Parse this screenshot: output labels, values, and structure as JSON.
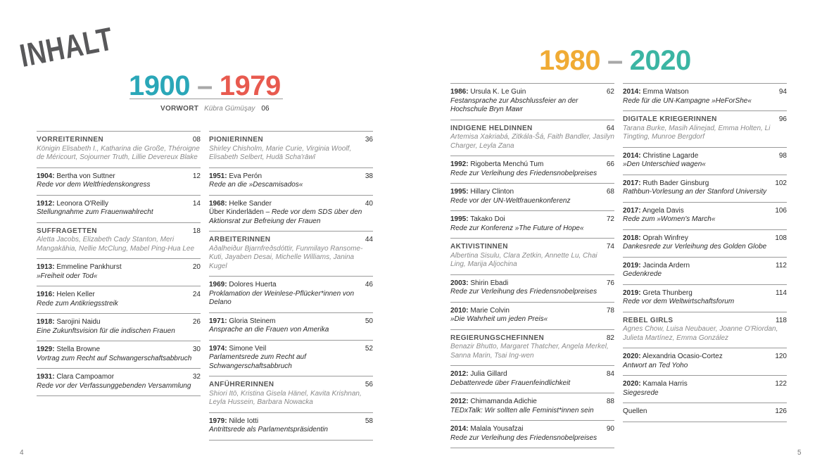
{
  "title": "INHALT",
  "left_page": {
    "range_start": "1900",
    "range_dash": "–",
    "range_end": "1979",
    "vorwort": {
      "label": "VORWORT",
      "author": "Kübra Gümüşay",
      "page": "06"
    },
    "columns": [
      [
        {
          "group": "VORREITERINNEN",
          "members": "Königin Elisabeth I., Katharina die Große, Théroigne de Méricourt, Sojourner Truth, Lillie Devereux Blake",
          "page": "08"
        },
        {
          "year": "1904:",
          "name": "Bertha von Suttner",
          "subtitle": "Rede vor dem Weltfriedenskongress",
          "page": "12"
        },
        {
          "year": "1912:",
          "name": "Leonora O'Reilly",
          "subtitle": "Stellungnahme zum Frauenwahlrecht",
          "page": "14"
        },
        {
          "group": "SUFFRAGETTEN",
          "members": "Aletta Jacobs, Elizabeth Cady Stanton, Meri Mangakāhia, Nellie McClung, Mabel Ping-Hua Lee",
          "page": "18"
        },
        {
          "year": "1913:",
          "name": "Emmeline Pankhurst",
          "subtitle": "»Freiheit oder Tod«",
          "page": "20"
        },
        {
          "year": "1916:",
          "name": "Helen Keller",
          "subtitle": "Rede zum Antikriegsstreik",
          "page": "24"
        },
        {
          "year": "1918:",
          "name": "Sarojini Naidu",
          "subtitle": "Eine Zukunftsvision für die indischen Frauen",
          "page": "26"
        },
        {
          "year": "1929:",
          "name": "Stella Browne",
          "subtitle": "Vortrag zum Recht auf Schwangerschaftsabbruch",
          "page": "30"
        },
        {
          "year": "1931:",
          "name": "Clara Campoamor",
          "subtitle": "Rede vor der Verfassunggebenden Versammlung",
          "page": "32"
        }
      ],
      [
        {
          "group": "PIONIERINNEN",
          "members": "Shirley Chisholm, Marie Curie, Virginia Woolf, Elisabeth Selbert, Hudā Scha'rāwī",
          "page": "36"
        },
        {
          "year": "1951:",
          "name": "Eva Perón",
          "subtitle": "Rede an die »Descamisados«",
          "page": "38"
        },
        {
          "year": "1968:",
          "name": "Helke Sander",
          "subtitle_plain": "Über Kinderläden – ",
          "subtitle": "Rede vor dem SDS über den Aktionsrat zur Befreiung der Frauen",
          "page": "40"
        },
        {
          "group": "ARBEITERINNEN",
          "members": "Aðalheiður Bjarnfreðsdóttir, Funmilayo Ransome-Kuti, Jayaben Desai, Michelle Williams, Janina Kugel",
          "page": "44"
        },
        {
          "year": "1969:",
          "name": "Dolores Huerta",
          "subtitle": "Proklamation der Weinlese-Pflücker*innen von Delano",
          "page": "46"
        },
        {
          "year": "1971:",
          "name": "Gloria Steinem",
          "subtitle": "Ansprache an die Frauen von Amerika",
          "page": "50"
        },
        {
          "year": "1974:",
          "name": "Simone Veil",
          "subtitle": "Parlamentsrede zum Recht auf Schwangerschaftsabbruch",
          "page": "52"
        },
        {
          "group": "ANFÜHRERINNEN",
          "members": "Shiori Itō, Kristina Gisela Hänel, Kavita Krishnan, Leyla Hussein, Barbara Nowacka",
          "page": "56"
        },
        {
          "year": "1979:",
          "name": "Nilde Iotti",
          "subtitle": "Antrittsrede als Parlamentspräsidentin",
          "page": "58"
        }
      ]
    ],
    "page_number": "4"
  },
  "right_page": {
    "range_start": "1980",
    "range_dash": "–",
    "range_end": "2020",
    "columns": [
      [
        {
          "year": "1986:",
          "name": "Ursula K. Le Guin",
          "subtitle": "Festansprache zur Abschlussfeier an der Hochschule Bryn Mawr",
          "page": "62"
        },
        {
          "group": "INDIGENE HELDINNEN",
          "members": "Artemisa Xakriabá, Zitkála-Šá, Faith Bandler, Jasilyn Charger, Leyla Zana",
          "page": "64"
        },
        {
          "year": "1992:",
          "name": "Rigoberta Menchú Tum",
          "subtitle": "Rede zur Verleihung des Friedensnobelpreises",
          "page": "66"
        },
        {
          "year": "1995:",
          "name": "Hillary Clinton",
          "subtitle": "Rede vor der UN-Weltfrauenkonferenz",
          "page": "68"
        },
        {
          "year": "1995:",
          "name": "Takako Doi",
          "subtitle": "Rede zur Konferenz »The Future of Hope«",
          "page": "72"
        },
        {
          "group": "AKTIVISTINNEN",
          "members": "Albertina Sisulu, Clara Zetkin, Annette Lu, Chai Ling, Marija Aljochina",
          "page": "74"
        },
        {
          "year": "2003:",
          "name": "Shirin Ebadi",
          "subtitle": "Rede zur Verleihung des Friedensnobelpreises",
          "page": "76"
        },
        {
          "year": "2010:",
          "name": "Marie Colvin",
          "subtitle": "»Die Wahrheit um jeden Preis«",
          "page": "78"
        },
        {
          "group": "REGIERUNGSCHEFINNEN",
          "members": "Benazir Bhutto, Margaret Thatcher, Angela Merkel, Sanna Marin, Tsai Ing-wen",
          "page": "82"
        },
        {
          "year": "2012:",
          "name": "Julia Gillard",
          "subtitle": "Debattenrede über Frauenfeindlichkeit",
          "page": "84"
        },
        {
          "year": "2012:",
          "name": "Chimamanda Adichie",
          "subtitle": "TEDxTalk: Wir sollten alle Feminist*innen sein",
          "page": "88"
        },
        {
          "year": "2014:",
          "name": "Malala Yousafzai",
          "subtitle": "Rede zur Verleihung des Friedensnobelpreises",
          "page": "90"
        }
      ],
      [
        {
          "year": "2014:",
          "name": "Emma Watson",
          "subtitle": "Rede für die UN-Kampagne »HeForShe«",
          "page": "94"
        },
        {
          "group": "DIGITALE KRIEGERINNEN",
          "members": "Tarana Burke, Masih Alinejad, Emma Holten, Li Tingting, Munroe Bergdorf",
          "page": "96"
        },
        {
          "year": "2014:",
          "name": "Christine Lagarde",
          "subtitle": "»Den Unterschied wagen«",
          "page": "98"
        },
        {
          "year": "2017:",
          "name": "Ruth Bader Ginsburg",
          "subtitle": "Rathbun-Vorlesung an der Stanford University",
          "page": "102"
        },
        {
          "year": "2017:",
          "name": "Angela Davis",
          "subtitle": "Rede zum »Women's March«",
          "page": "106"
        },
        {
          "year": "2018:",
          "name": "Oprah Winfrey",
          "subtitle": "Dankesrede zur Verleihung des Golden Globe",
          "page": "108"
        },
        {
          "year": "2019:",
          "name": "Jacinda Ardern",
          "subtitle": "Gedenkrede",
          "page": "112"
        },
        {
          "year": "2019:",
          "name": "Greta Thunberg",
          "subtitle": "Rede vor dem Weltwirtschaftsforum",
          "page": "114"
        },
        {
          "group": "REBEL GIRLS",
          "members": "Agnes Chow, Luisa Neubauer, Joanne O'Riordan, Julieta Martínez, Emma González",
          "page": "118"
        },
        {
          "year": "2020:",
          "name": "Alexandria Ocasio-Cortez",
          "subtitle": "Antwort an Ted Yoho",
          "page": "120"
        },
        {
          "year": "2020:",
          "name": "Kamala Harris",
          "subtitle": "Siegesrede",
          "page": "122"
        },
        {
          "label": "Quellen",
          "page": "126"
        }
      ]
    ],
    "page_number": "5"
  },
  "colors": {
    "teal": "#2aa7b8",
    "red": "#e85a4f",
    "orange": "#f0ab34",
    "green_teal": "#3bb5a3",
    "dash": "#a8a8a8"
  }
}
